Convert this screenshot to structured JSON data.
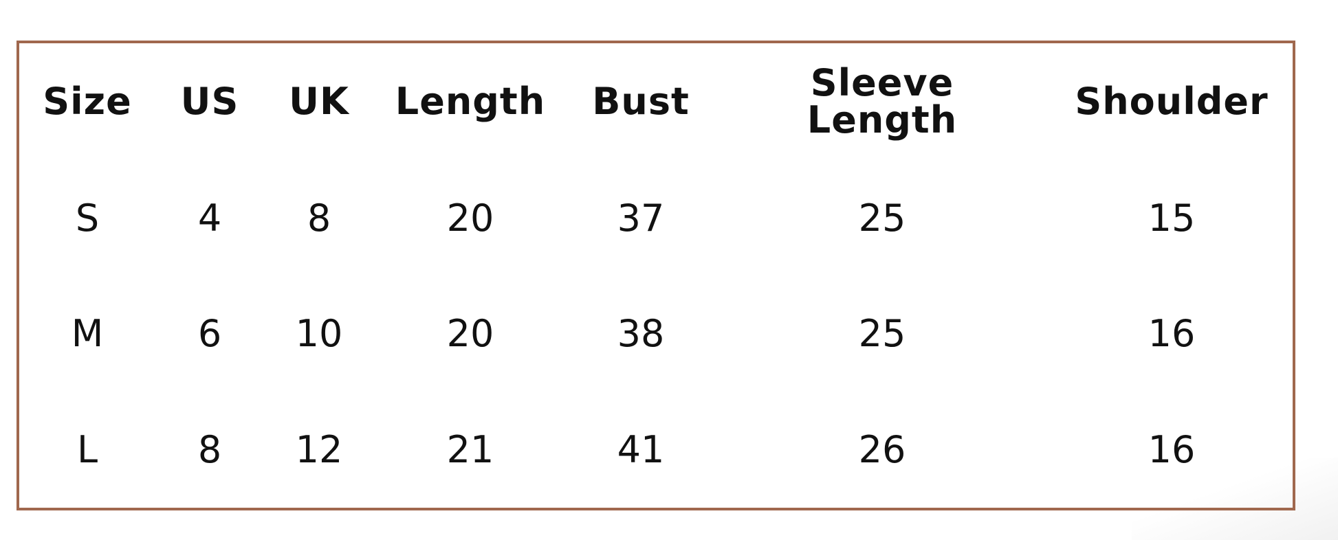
{
  "size_chart": {
    "border_color": "#a0684e",
    "headers": [
      "Size",
      "US",
      "UK",
      "Length",
      "Bust",
      "Sleeve Length",
      "Shoulder"
    ],
    "rows": [
      [
        "S",
        "4",
        "8",
        "20",
        "37",
        "25",
        "15"
      ],
      [
        "M",
        "6",
        "10",
        "20",
        "38",
        "25",
        "16"
      ],
      [
        "L",
        "8",
        "12",
        "21",
        "41",
        "26",
        "16"
      ]
    ]
  }
}
